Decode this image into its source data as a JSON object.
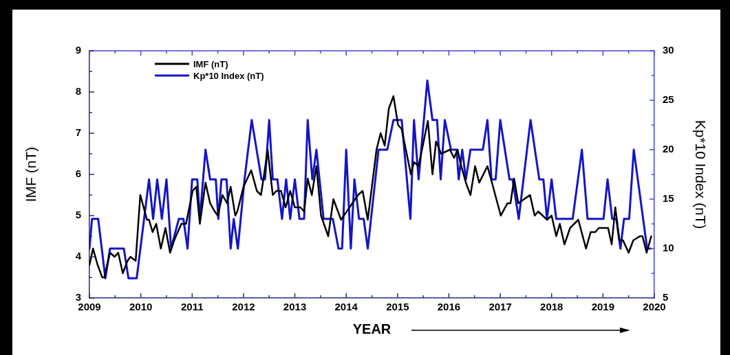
{
  "chart_data": {
    "type": "line",
    "xlabel": "YEAR",
    "ylabel": "IMF (nT)",
    "y2label": "Kp*10 Index (nT)",
    "xlim": [
      2009,
      2020
    ],
    "xticks": [
      2009,
      {
        "value": 2009.5,
        "label": null
      },
      2010,
      {
        "value": 2010.5,
        "label": null
      },
      2011,
      {
        "value": 2011.5,
        "label": null
      },
      2012,
      {
        "value": 2012.5,
        "label": null
      },
      2013,
      {
        "value": 2013.5,
        "label": null
      },
      2014,
      {
        "value": 2014.5,
        "label": null
      },
      2015,
      {
        "value": 2015.5,
        "label": null
      },
      2016,
      {
        "value": 2016.5,
        "label": null
      },
      2017,
      {
        "value": 2017.5,
        "label": null
      },
      2018,
      {
        "value": 2018.5,
        "label": null
      },
      2019,
      {
        "value": 2019.5,
        "label": null
      },
      2020
    ],
    "ylim": [
      3,
      9
    ],
    "yticks": [
      3,
      {
        "value": 3.5,
        "label": null
      },
      4,
      {
        "value": 4.5,
        "label": null
      },
      5,
      {
        "value": 5.5,
        "label": null
      },
      6,
      {
        "value": 6.5,
        "label": null
      },
      7,
      {
        "value": 7.5,
        "label": null
      },
      8,
      {
        "value": 8.5,
        "label": null
      },
      9
    ],
    "y2lim": [
      5,
      30
    ],
    "y2ticks": [
      5,
      {
        "value": 7.5,
        "label": null
      },
      10,
      {
        "value": 12.5,
        "label": null
      },
      15,
      {
        "value": 17.5,
        "label": null
      },
      20,
      {
        "value": 22.5,
        "label": null
      },
      25,
      {
        "value": 27.5,
        "label": null
      },
      30
    ],
    "legend": "top left",
    "marker": "none",
    "line_style": "solid",
    "series": [
      {
        "name": "IMF (nT)",
        "color": "#000000",
        "x": [
          2009.0,
          2009.07,
          2009.16,
          2009.25,
          2009.29,
          2009.4,
          2009.49,
          2009.56,
          2009.65,
          2009.74,
          2009.8,
          2009.9,
          2009.99,
          2010.12,
          2010.16,
          2010.23,
          2010.3,
          2010.39,
          2010.48,
          2010.57,
          2010.65,
          2010.79,
          2010.88,
          2011.01,
          2011.08,
          2011.15,
          2011.26,
          2011.35,
          2011.44,
          2011.5,
          2011.59,
          2011.68,
          2011.75,
          2011.84,
          2011.88,
          2012.0,
          2012.15,
          2012.26,
          2012.34,
          2012.39,
          2012.47,
          2012.57,
          2012.64,
          2012.73,
          2012.82,
          2012.91,
          2013.0,
          2013.11,
          2013.18,
          2013.25,
          2013.33,
          2013.42,
          2013.51,
          2013.65,
          2013.75,
          2013.9,
          2014.23,
          2014.32,
          2014.42,
          2014.59,
          2014.67,
          2014.75,
          2014.83,
          2014.92,
          2015.01,
          2015.08,
          2015.26,
          2015.32,
          2015.41,
          2015.59,
          2015.68,
          2015.75,
          2015.85,
          2016.02,
          2016.1,
          2016.17,
          2016.22,
          2016.33,
          2016.42,
          2016.51,
          2016.59,
          2016.75,
          2016.86,
          2017.01,
          2017.14,
          2017.2,
          2017.27,
          2017.35,
          2017.58,
          2017.67,
          2017.74,
          2017.91,
          2018.0,
          2018.09,
          2018.16,
          2018.25,
          2018.36,
          2018.52,
          2018.67,
          2018.76,
          2018.85,
          2018.92,
          2019.1,
          2019.17,
          2019.24,
          2019.32,
          2019.39,
          2019.5,
          2019.59,
          2019.72,
          2019.77,
          2019.85,
          2019.94
        ],
        "values": [
          3.8,
          4.2,
          3.8,
          3.5,
          3.5,
          4.1,
          4.0,
          4.1,
          3.6,
          3.9,
          4.0,
          3.9,
          5.5,
          4.9,
          4.9,
          4.6,
          4.8,
          4.2,
          4.7,
          4.1,
          4.4,
          4.8,
          4.8,
          5.6,
          5.7,
          4.8,
          5.8,
          5.3,
          5.1,
          5.0,
          5.5,
          5.3,
          5.7,
          5.0,
          5.1,
          5.7,
          6.1,
          5.6,
          5.5,
          5.9,
          6.6,
          5.5,
          5.6,
          5.6,
          5.2,
          5.6,
          5.2,
          5.2,
          5.1,
          5.9,
          5.5,
          6.2,
          5.0,
          4.5,
          5.4,
          4.9,
          5.5,
          5.6,
          4.9,
          6.6,
          7.0,
          6.7,
          7.6,
          7.9,
          7.2,
          7.1,
          6.0,
          6.3,
          6.2,
          7.3,
          6.0,
          6.8,
          6.5,
          6.6,
          6.4,
          6.6,
          6.3,
          5.8,
          5.5,
          6.2,
          5.8,
          6.2,
          5.7,
          5.0,
          5.3,
          5.3,
          5.9,
          5.3,
          5.5,
          5.0,
          5.1,
          4.9,
          5.0,
          4.5,
          4.8,
          4.3,
          4.7,
          4.9,
          4.2,
          4.6,
          4.6,
          4.7,
          4.7,
          4.3,
          5.2,
          4.4,
          4.4,
          4.1,
          4.4,
          4.5,
          4.5,
          4.1,
          4.5
        ]
      },
      {
        "name": "Kp*10 Index (nT)",
        "color": "#1414c8",
        "axis": "y2",
        "x": [
          2009.0,
          2009.05,
          2009.17,
          2009.31,
          2009.4,
          2009.67,
          2009.76,
          2009.92,
          2010.16,
          2010.24,
          2010.32,
          2010.41,
          2010.5,
          2010.59,
          2010.74,
          2010.83,
          2010.91,
          2011.0,
          2011.1,
          2011.15,
          2011.26,
          2011.35,
          2011.46,
          2011.51,
          2011.57,
          2011.67,
          2011.75,
          2011.81,
          2011.89,
          2012.02,
          2012.16,
          2012.35,
          2012.42,
          2012.5,
          2012.57,
          2012.66,
          2012.75,
          2012.83,
          2012.91,
          2013.0,
          2013.09,
          2013.18,
          2013.25,
          2013.34,
          2013.42,
          2013.56,
          2013.74,
          2013.85,
          2013.92,
          2014.0,
          2014.09,
          2014.16,
          2014.25,
          2014.34,
          2014.42,
          2014.63,
          2014.8,
          2014.92,
          2015.08,
          2015.25,
          2015.32,
          2015.41,
          2015.58,
          2015.68,
          2015.77,
          2015.84,
          2015.92,
          2016.04,
          2016.15,
          2016.19,
          2016.26,
          2016.33,
          2016.42,
          2016.66,
          2016.75,
          2016.83,
          2016.91,
          2017.0,
          2017.18,
          2017.24,
          2017.36,
          2017.59,
          2017.76,
          2017.84,
          2017.91,
          2018.0,
          2018.09,
          2018.41,
          2018.59,
          2018.7,
          2019.01,
          2019.09,
          2019.18,
          2019.26,
          2019.34,
          2019.41,
          2019.51,
          2019.6,
          2019.86,
          2019.93
        ],
        "values": [
          10,
          13,
          13,
          7,
          10,
          10,
          7,
          7,
          17,
          13,
          17,
          13,
          17,
          10,
          13,
          13,
          10,
          17,
          17,
          13,
          20,
          17,
          17,
          13,
          17,
          17,
          10,
          13,
          10,
          17,
          23,
          17,
          17,
          23,
          17,
          17,
          13,
          17,
          13,
          17,
          13,
          13,
          23,
          17,
          20,
          13,
          13,
          10,
          10,
          20,
          10,
          17,
          13,
          13,
          10,
          20,
          20,
          23,
          23,
          13,
          23,
          17,
          27,
          23,
          23,
          17,
          23,
          20,
          20,
          17,
          20,
          17,
          20,
          20,
          23,
          17,
          17,
          23,
          17,
          17,
          13,
          23,
          17,
          17,
          13,
          17,
          13,
          13,
          20,
          13,
          13,
          17,
          13,
          13,
          10,
          13,
          13,
          20,
          10,
          10
        ]
      }
    ]
  }
}
